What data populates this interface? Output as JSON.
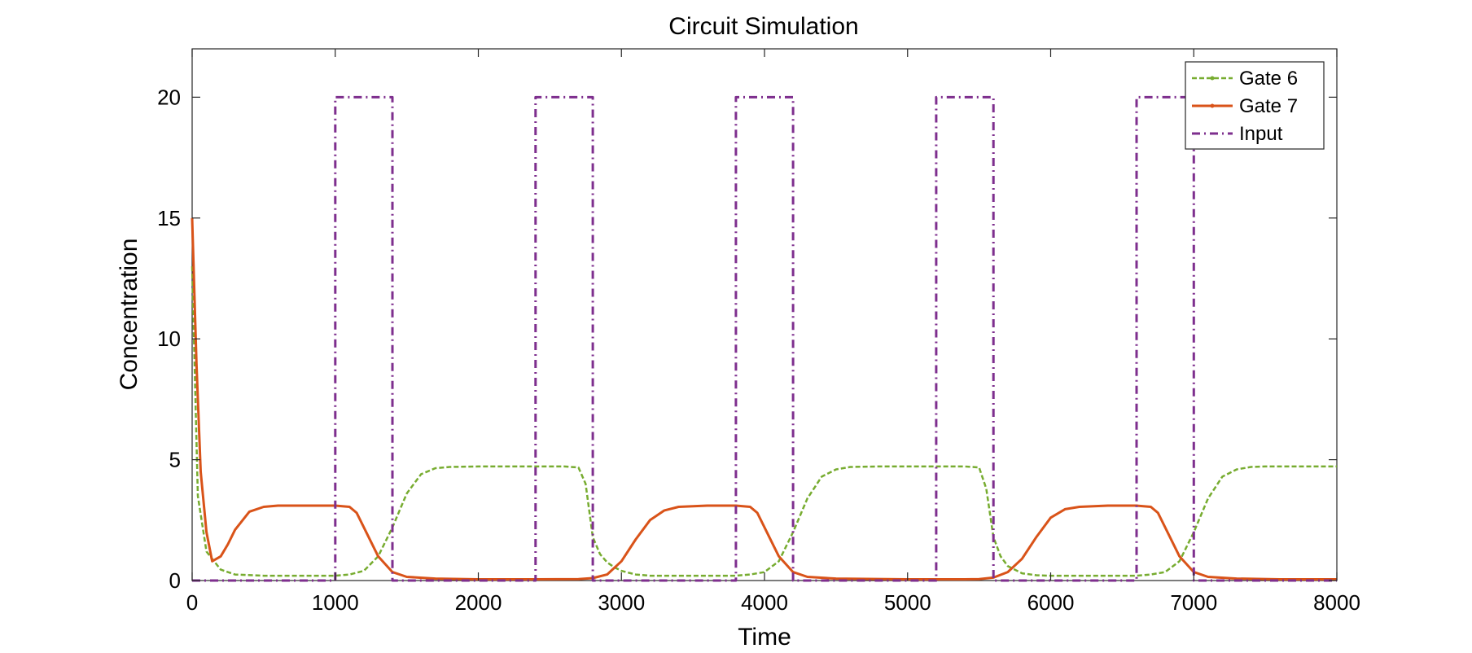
{
  "chart_data": {
    "type": "line",
    "title": "Circuit Simulation",
    "xlabel": "Time",
    "ylabel": "Concentration",
    "xlim": [
      0,
      8000
    ],
    "ylim": [
      0,
      22
    ],
    "xticks": [
      0,
      1000,
      2000,
      3000,
      4000,
      5000,
      6000,
      7000,
      8000
    ],
    "yticks": [
      0,
      5,
      10,
      15,
      20
    ],
    "grid": false,
    "legend_position": "top-right",
    "series": [
      {
        "name": "Gate 6",
        "color": "#77AC30",
        "style": "dashed-dotted",
        "x": [
          0,
          40,
          100,
          200,
          300,
          500,
          800,
          1000,
          1100,
          1200,
          1300,
          1400,
          1500,
          1600,
          1700,
          1800,
          2000,
          2400,
          2600,
          2700,
          2750,
          2800,
          2850,
          2900,
          2950,
          3000,
          3100,
          3200,
          3500,
          3800,
          3900,
          4000,
          4100,
          4200,
          4300,
          4400,
          4500,
          4600,
          4800,
          5200,
          5400,
          5500,
          5550,
          5600,
          5650,
          5700,
          5800,
          5900,
          6000,
          6300,
          6600,
          6700,
          6800,
          6900,
          7000,
          7100,
          7200,
          7300,
          7400,
          7500,
          7600,
          8000
        ],
        "y": [
          13,
          3.5,
          1.2,
          0.45,
          0.25,
          0.2,
          0.2,
          0.2,
          0.25,
          0.4,
          1.0,
          2.2,
          3.6,
          4.4,
          4.65,
          4.7,
          4.72,
          4.72,
          4.72,
          4.68,
          4.0,
          1.8,
          1.1,
          0.75,
          0.55,
          0.4,
          0.25,
          0.2,
          0.2,
          0.2,
          0.25,
          0.35,
          0.8,
          2.0,
          3.4,
          4.3,
          4.6,
          4.7,
          4.72,
          4.72,
          4.72,
          4.68,
          3.8,
          1.8,
          1.0,
          0.6,
          0.3,
          0.22,
          0.2,
          0.2,
          0.2,
          0.25,
          0.35,
          0.8,
          2.0,
          3.4,
          4.3,
          4.6,
          4.7,
          4.72,
          4.72,
          4.72
        ]
      },
      {
        "name": "Gate 7",
        "color": "#D95319",
        "style": "solid",
        "x": [
          0,
          30,
          60,
          100,
          140,
          200,
          250,
          300,
          400,
          500,
          600,
          800,
          1000,
          1100,
          1150,
          1200,
          1300,
          1400,
          1500,
          1700,
          2000,
          2400,
          2700,
          2800,
          2900,
          3000,
          3100,
          3200,
          3300,
          3400,
          3600,
          3800,
          3900,
          3950,
          4000,
          4100,
          4200,
          4300,
          4500,
          5000,
          5400,
          5500,
          5600,
          5700,
          5800,
          5900,
          6000,
          6100,
          6200,
          6400,
          6600,
          6700,
          6750,
          6800,
          6900,
          7000,
          7100,
          7300,
          7600,
          8000
        ],
        "y": [
          15,
          9,
          4.5,
          2.0,
          0.8,
          1.0,
          1.5,
          2.1,
          2.85,
          3.05,
          3.1,
          3.1,
          3.1,
          3.05,
          2.8,
          2.2,
          1.0,
          0.35,
          0.15,
          0.08,
          0.05,
          0.05,
          0.06,
          0.1,
          0.25,
          0.8,
          1.7,
          2.5,
          2.9,
          3.05,
          3.1,
          3.1,
          3.05,
          2.8,
          2.2,
          1.0,
          0.35,
          0.15,
          0.08,
          0.05,
          0.05,
          0.06,
          0.12,
          0.35,
          0.9,
          1.8,
          2.6,
          2.95,
          3.05,
          3.1,
          3.1,
          3.05,
          2.8,
          2.2,
          1.0,
          0.35,
          0.15,
          0.08,
          0.05,
          0.05
        ]
      },
      {
        "name": "Input",
        "color": "#7E2F8E",
        "style": "dash-dot",
        "x": [
          0,
          1000,
          1000,
          1400,
          1400,
          2400,
          2400,
          2800,
          2800,
          3800,
          3800,
          4200,
          4200,
          5200,
          5200,
          5600,
          5600,
          6600,
          6600,
          7000,
          7000,
          8000
        ],
        "y": [
          0,
          0,
          20,
          20,
          0,
          0,
          20,
          20,
          0,
          0,
          20,
          20,
          0,
          0,
          20,
          20,
          0,
          0,
          20,
          20,
          0,
          0
        ]
      }
    ]
  }
}
